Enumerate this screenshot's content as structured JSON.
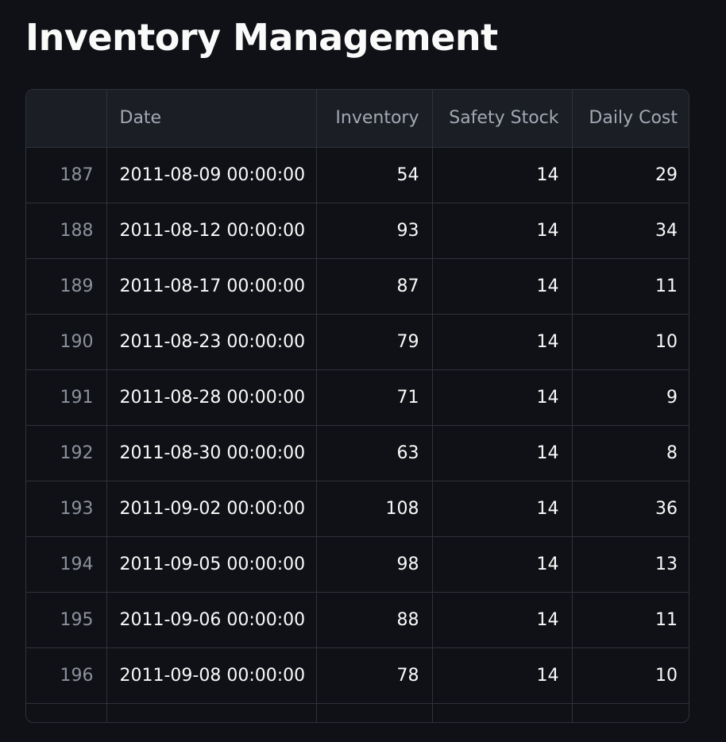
{
  "title": "Inventory Management",
  "table": {
    "columns": [
      "",
      "Date",
      "Inventory",
      "Safety Stock",
      "Daily Cost"
    ],
    "rows": [
      {
        "index": "187",
        "date": "2011-08-09 00:00:00",
        "inventory": "54",
        "safety_stock": "14",
        "daily_cost": "29"
      },
      {
        "index": "188",
        "date": "2011-08-12 00:00:00",
        "inventory": "93",
        "safety_stock": "14",
        "daily_cost": "34"
      },
      {
        "index": "189",
        "date": "2011-08-17 00:00:00",
        "inventory": "87",
        "safety_stock": "14",
        "daily_cost": "11"
      },
      {
        "index": "190",
        "date": "2011-08-23 00:00:00",
        "inventory": "79",
        "safety_stock": "14",
        "daily_cost": "10"
      },
      {
        "index": "191",
        "date": "2011-08-28 00:00:00",
        "inventory": "71",
        "safety_stock": "14",
        "daily_cost": "9"
      },
      {
        "index": "192",
        "date": "2011-08-30 00:00:00",
        "inventory": "63",
        "safety_stock": "14",
        "daily_cost": "8"
      },
      {
        "index": "193",
        "date": "2011-09-02 00:00:00",
        "inventory": "108",
        "safety_stock": "14",
        "daily_cost": "36"
      },
      {
        "index": "194",
        "date": "2011-09-05 00:00:00",
        "inventory": "98",
        "safety_stock": "14",
        "daily_cost": "13"
      },
      {
        "index": "195",
        "date": "2011-09-06 00:00:00",
        "inventory": "88",
        "safety_stock": "14",
        "daily_cost": "11"
      },
      {
        "index": "196",
        "date": "2011-09-08 00:00:00",
        "inventory": "78",
        "safety_stock": "14",
        "daily_cost": "10"
      }
    ]
  },
  "colors": {
    "background": "#0f1116",
    "header_background": "#1b1e25",
    "grid_line": "#2f3239",
    "text": "#fafafa",
    "muted_text": "#8c919c"
  }
}
